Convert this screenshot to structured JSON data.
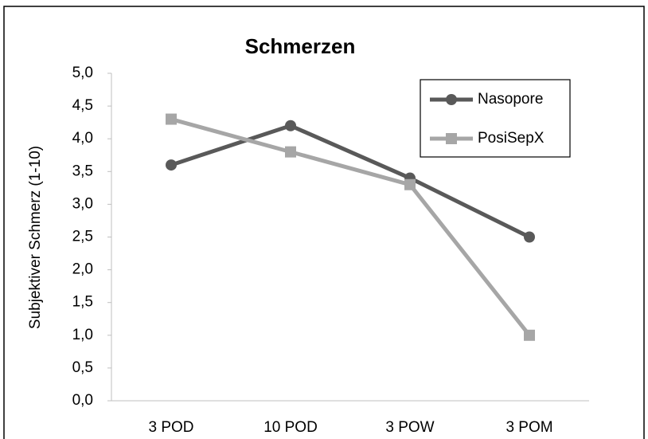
{
  "chart_data": {
    "type": "line",
    "title": "Schmerzen",
    "y_label": "Subjektiver Schmerz (1-10)",
    "categories": [
      "3 POD",
      "10 POD",
      "3 POW",
      "3 POM"
    ],
    "series": [
      {
        "name": "Nasopore",
        "color": "#595959",
        "marker": "circle",
        "values": [
          3.6,
          4.2,
          3.4,
          2.5
        ]
      },
      {
        "name": "PosiSepX",
        "color": "#a6a6a6",
        "marker": "square",
        "values": [
          4.3,
          3.8,
          3.3,
          1.0
        ]
      }
    ],
    "ylim": [
      0,
      5
    ],
    "yticks": [
      {
        "value": 0,
        "label": "0,0"
      },
      {
        "value": 0.5,
        "label": "0,5"
      },
      {
        "value": 1,
        "label": "1,0"
      },
      {
        "value": 1.5,
        "label": "1,5"
      },
      {
        "value": 2,
        "label": "2,0"
      },
      {
        "value": 2.5,
        "label": "2,5"
      },
      {
        "value": 3,
        "label": "3,0"
      },
      {
        "value": 3.5,
        "label": "3,5"
      },
      {
        "value": 4,
        "label": "4,0"
      },
      {
        "value": 4.5,
        "label": "4,5"
      },
      {
        "value": 5,
        "label": "5,0"
      }
    ],
    "legend": "top-right",
    "grid": false
  }
}
